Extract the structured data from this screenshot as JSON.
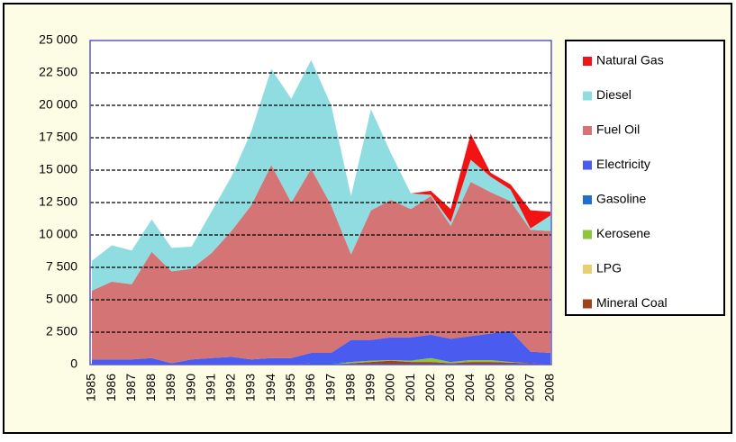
{
  "chart_data": {
    "type": "stacked_area",
    "categories": [
      "1985",
      "1986",
      "1987",
      "1988",
      "1989",
      "1990",
      "1991",
      "1992",
      "1993",
      "1994",
      "1995",
      "1996",
      "1997",
      "1998",
      "1999",
      "2000",
      "2001",
      "2002",
      "2003",
      "2004",
      "2005",
      "2006",
      "2007",
      "2008"
    ],
    "series": [
      {
        "name": "Natural Gas",
        "color": "#f21414",
        "values": [
          0,
          0,
          0,
          0,
          0,
          0,
          0,
          0,
          0,
          0,
          0,
          0,
          0,
          0,
          0,
          0,
          0,
          300,
          1000,
          2000,
          300,
          400,
          1400,
          300
        ]
      },
      {
        "name": "Diesel",
        "color": "#8fdde0",
        "values": [
          2300,
          2800,
          2600,
          2500,
          1800,
          1700,
          3200,
          4200,
          5700,
          7400,
          8000,
          8400,
          7700,
          4500,
          7800,
          3600,
          1200,
          100,
          300,
          1700,
          1200,
          900,
          100,
          1200
        ]
      },
      {
        "name": "Fuel Oil",
        "color": "#d47474",
        "values": [
          5300,
          6000,
          5800,
          8200,
          7100,
          7000,
          8100,
          9700,
          11900,
          14900,
          12000,
          14200,
          11400,
          6600,
          10000,
          10600,
          9900,
          10700,
          8700,
          11900,
          10900,
          10000,
          9400,
          9400
        ]
      },
      {
        "name": "Electricity",
        "color": "#4a5cf0",
        "values": [
          400,
          400,
          400,
          500,
          100,
          400,
          500,
          600,
          400,
          500,
          500,
          800,
          800,
          1700,
          1600,
          1750,
          1800,
          1800,
          1800,
          1850,
          2050,
          2400,
          900,
          900
        ]
      },
      {
        "name": "Gasoline",
        "color": "#1f6fd0",
        "values": [
          0,
          0,
          0,
          0,
          0,
          0,
          0,
          0,
          0,
          0,
          0,
          100,
          100,
          0,
          0,
          0,
          0,
          0,
          0,
          0,
          0,
          0,
          0,
          0
        ]
      },
      {
        "name": "Kerosene",
        "color": "#8cc63f",
        "values": [
          0,
          0,
          0,
          0,
          0,
          0,
          0,
          0,
          0,
          0,
          0,
          0,
          0,
          100,
          100,
          50,
          100,
          300,
          100,
          150,
          150,
          50,
          0,
          0
        ]
      },
      {
        "name": "LPG",
        "color": "#e6d070",
        "values": [
          0,
          0,
          0,
          0,
          0,
          0,
          0,
          0,
          0,
          0,
          0,
          0,
          0,
          0,
          0,
          0,
          0,
          0,
          0,
          0,
          0,
          0,
          0,
          0
        ]
      },
      {
        "name": "Mineral Coal",
        "color": "#a0421a",
        "values": [
          0,
          0,
          0,
          0,
          0,
          0,
          0,
          0,
          0,
          0,
          0,
          0,
          0,
          100,
          200,
          300,
          200,
          200,
          100,
          200,
          200,
          150,
          100,
          0
        ]
      }
    ],
    "ylim": [
      0,
      25000
    ],
    "yticks": [
      0,
      {
        "value": 2500,
        "label": "2 500"
      },
      {
        "value": 5000,
        "label": "5 000"
      },
      {
        "value": 7500,
        "label": "7 500"
      },
      {
        "value": 10000,
        "label": "10 000"
      },
      {
        "value": 12500,
        "label": "12 500"
      },
      {
        "value": 15000,
        "label": "15 000"
      },
      {
        "value": 17500,
        "label": "17 500"
      },
      {
        "value": 20000,
        "label": "20 000"
      },
      {
        "value": 22500,
        "label": "22 500"
      },
      {
        "value": 25000,
        "label": "25 000"
      }
    ],
    "grid": true,
    "legend": "right"
  }
}
